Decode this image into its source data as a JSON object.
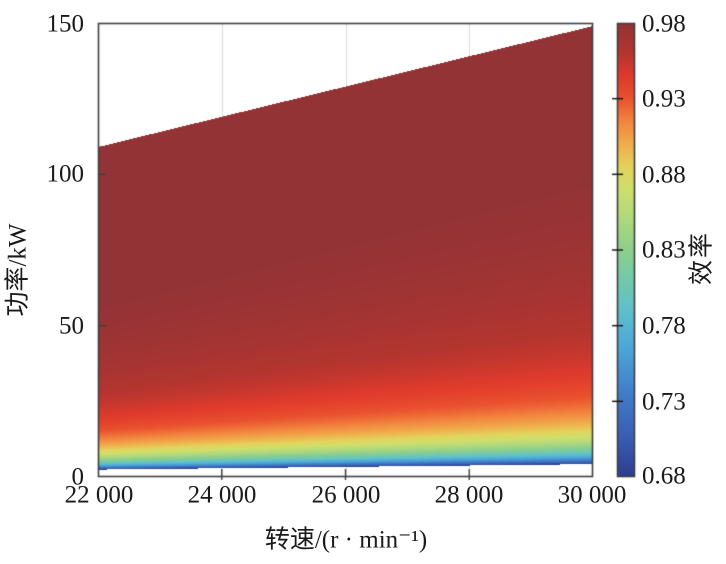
{
  "figure": {
    "type": "efficiency-map",
    "background": "#ffffff"
  },
  "chart_data": {
    "type": "heatmap",
    "title": "",
    "xlabel": "转速/(r · min⁻¹)",
    "ylabel": "功率/kW",
    "colorbar_label": "效率",
    "xlim": [
      22000,
      30000
    ],
    "ylim": [
      0,
      150
    ],
    "clim": [
      0.68,
      0.98
    ],
    "x_ticks": [
      "22 000",
      "24 000",
      "26 000",
      "28 000",
      "30 000"
    ],
    "x_tick_values": [
      22000,
      24000,
      26000,
      28000,
      30000
    ],
    "y_ticks": [
      "0",
      "50",
      "100",
      "150"
    ],
    "y_tick_values": [
      0,
      50,
      100,
      150
    ],
    "colorbar_ticks": [
      "0.98",
      "0.93",
      "0.88",
      "0.83",
      "0.78",
      "0.73",
      "0.68"
    ],
    "colorbar_tick_values": [
      0.98,
      0.93,
      0.88,
      0.83,
      0.78,
      0.73,
      0.68
    ],
    "grid": {
      "vertical": true,
      "horizontal": false,
      "color": "#dcdcdc"
    },
    "legend_position": "colorbar-right",
    "max_power_boundary": {
      "comment": "upper edge of colored region (max power vs speed), linear",
      "x": [
        22000,
        30000
      ],
      "power_kw": [
        109,
        149
      ]
    },
    "efficiency_model": {
      "comment": "efficiency = P/(P+loss), loss interpolated linearly across speed, clipped to clim; below lower clip no data (white)",
      "loss_kw_at_xlim": [
        1.15,
        2.0
      ],
      "clip": [
        0.68,
        0.98
      ]
    },
    "colormap_stops": [
      [
        0.68,
        "#2e3d8f"
      ],
      [
        0.705,
        "#3a5cb2"
      ],
      [
        0.735,
        "#407dc9"
      ],
      [
        0.765,
        "#4da6d8"
      ],
      [
        0.79,
        "#5fc0cd"
      ],
      [
        0.81,
        "#73c9ac"
      ],
      [
        0.83,
        "#8ecf8d"
      ],
      [
        0.85,
        "#aed87e"
      ],
      [
        0.87,
        "#cfdf6c"
      ],
      [
        0.885,
        "#e3d35c"
      ],
      [
        0.9,
        "#f0ad4c"
      ],
      [
        0.915,
        "#f2853f"
      ],
      [
        0.93,
        "#ea522f"
      ],
      [
        0.945,
        "#e03a2c"
      ],
      [
        0.96,
        "#b5352f"
      ],
      [
        0.98,
        "#943336"
      ]
    ],
    "colors": {
      "axis": "#3f3f3f",
      "tick_text": "#1a1a1a",
      "background": "#ffffff",
      "high_efficiency": "#943336",
      "low_efficiency": "#2e3d8f"
    }
  }
}
